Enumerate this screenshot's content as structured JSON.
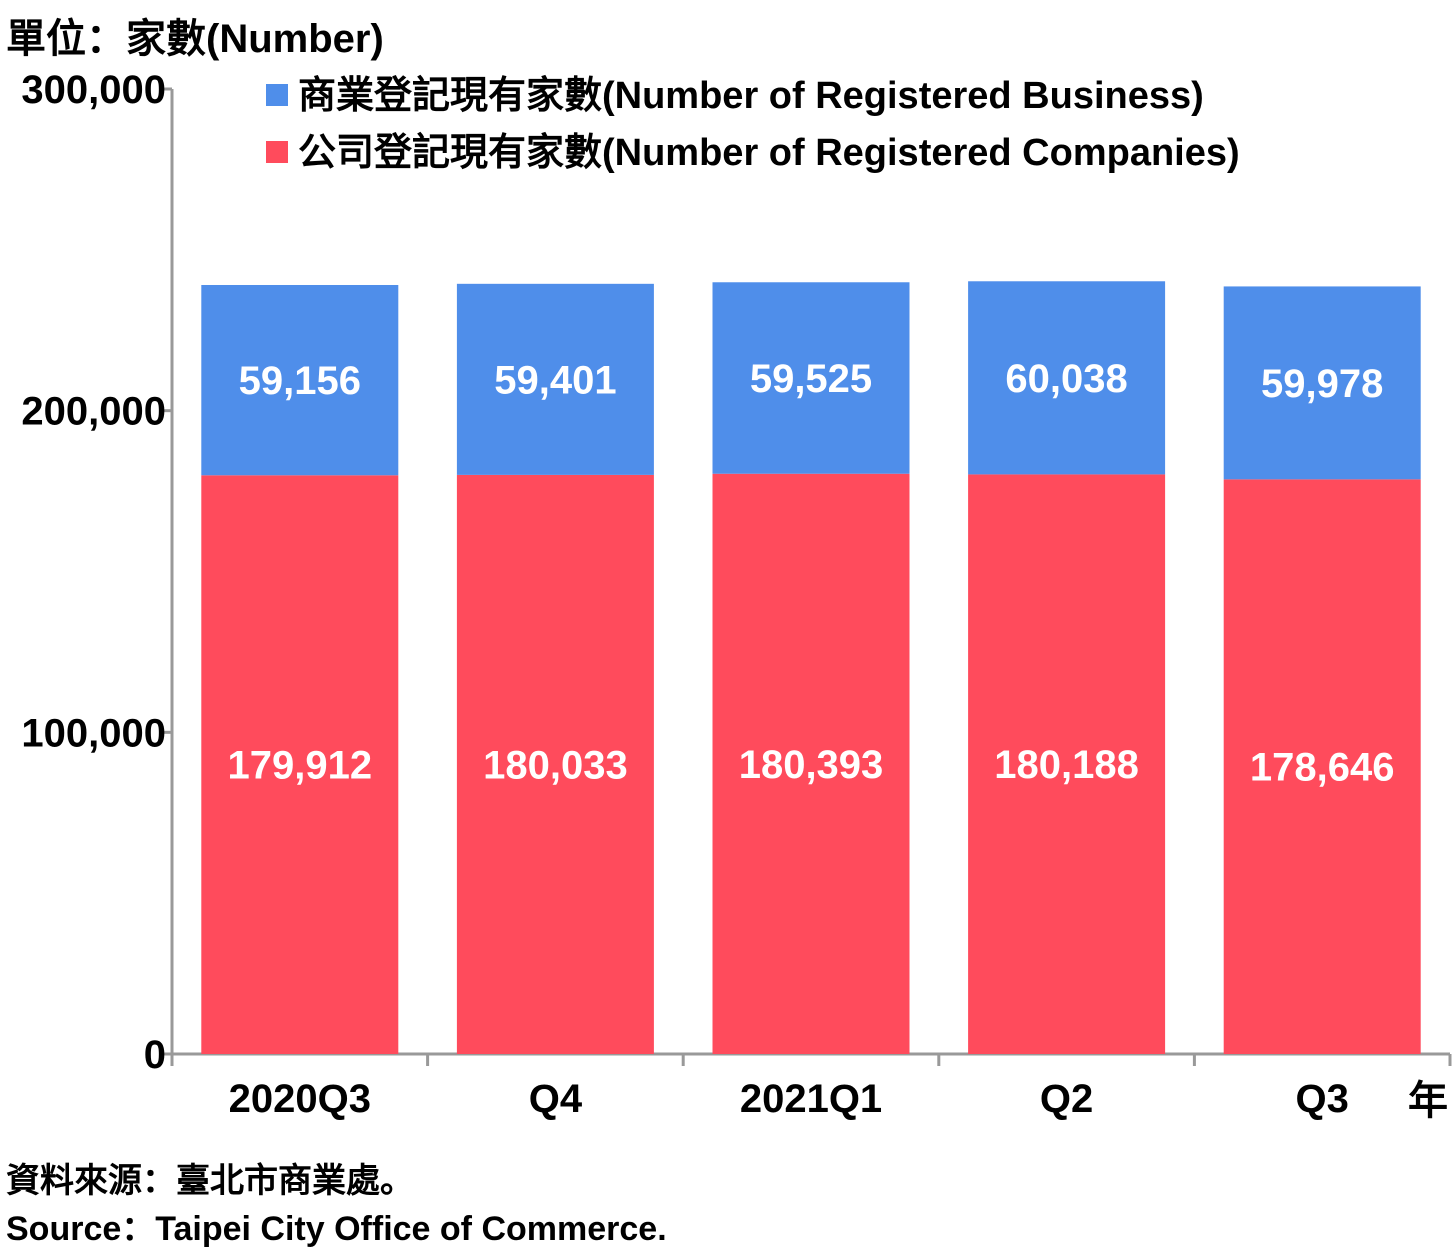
{
  "unit_label": "單位：家數(Number)",
  "source_zh": "資料來源：臺北市商業處。",
  "source_en": "Source：Taipei City Office of Commerce.",
  "colors": {
    "business": "#4f8eea",
    "companies": "#ff4b5c",
    "axis": "#999999"
  },
  "chart_data": {
    "type": "bar",
    "stacked": true,
    "categories": [
      "2020Q3",
      "Q4",
      "2021Q1",
      "Q2",
      "Q3"
    ],
    "x_unit_label": "年",
    "ylim": [
      0,
      300000
    ],
    "y_ticks": [
      {
        "value": 0,
        "label": "0"
      },
      {
        "value": 100000,
        "label": "100,000"
      },
      {
        "value": 200000,
        "label": "200,000"
      },
      {
        "value": 300000,
        "label": "300,000"
      }
    ],
    "legend_position": "top",
    "series": [
      {
        "key": "companies",
        "name": "公司登記現有家數(Number of Registered Companies)",
        "values": [
          179912,
          180033,
          180393,
          180188,
          178646
        ],
        "labels": [
          "179,912",
          "180,033",
          "180,393",
          "180,188",
          "178,646"
        ]
      },
      {
        "key": "business",
        "name": "商業登記現有家數(Number of Registered Business)",
        "values": [
          59156,
          59401,
          59525,
          60038,
          59978
        ],
        "labels": [
          "59,156",
          "59,401",
          "59,525",
          "60,038",
          "59,978"
        ]
      }
    ]
  }
}
